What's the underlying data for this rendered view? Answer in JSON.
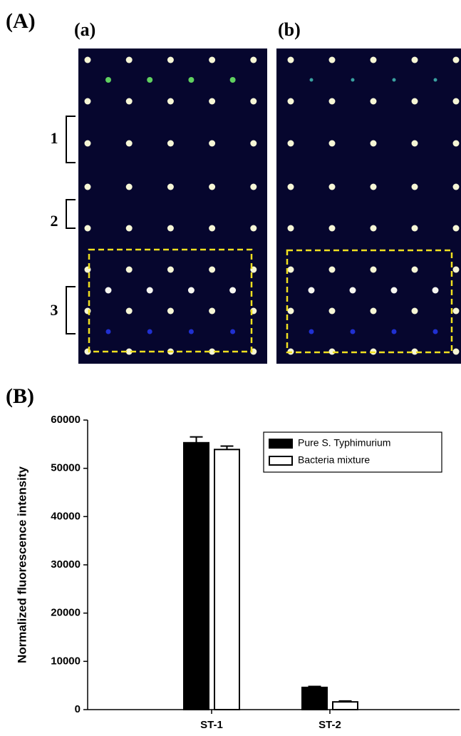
{
  "figure": {
    "label_A": "(A)",
    "label_a": "(a)",
    "label_b": "(b)",
    "brackets": [
      "1",
      "2",
      "3"
    ],
    "label_B": "(B)"
  },
  "chart_data": {
    "type": "bar",
    "ylabel": "Normalized fluorescence intensity",
    "categories": [
      "ST-1",
      "ST-2"
    ],
    "series": [
      {
        "name": "Pure S. Typhimurium",
        "color": "#000000",
        "values": [
          55300,
          4600
        ],
        "errors": [
          1200,
          200
        ]
      },
      {
        "name": "Bacteria mixture",
        "color": "#ffffff",
        "values": [
          53900,
          1600
        ],
        "errors": [
          700,
          200
        ]
      }
    ],
    "ylim": [
      0,
      60000
    ],
    "yticks": [
      0,
      10000,
      20000,
      30000,
      40000,
      50000,
      60000
    ],
    "legend": "top-right"
  }
}
